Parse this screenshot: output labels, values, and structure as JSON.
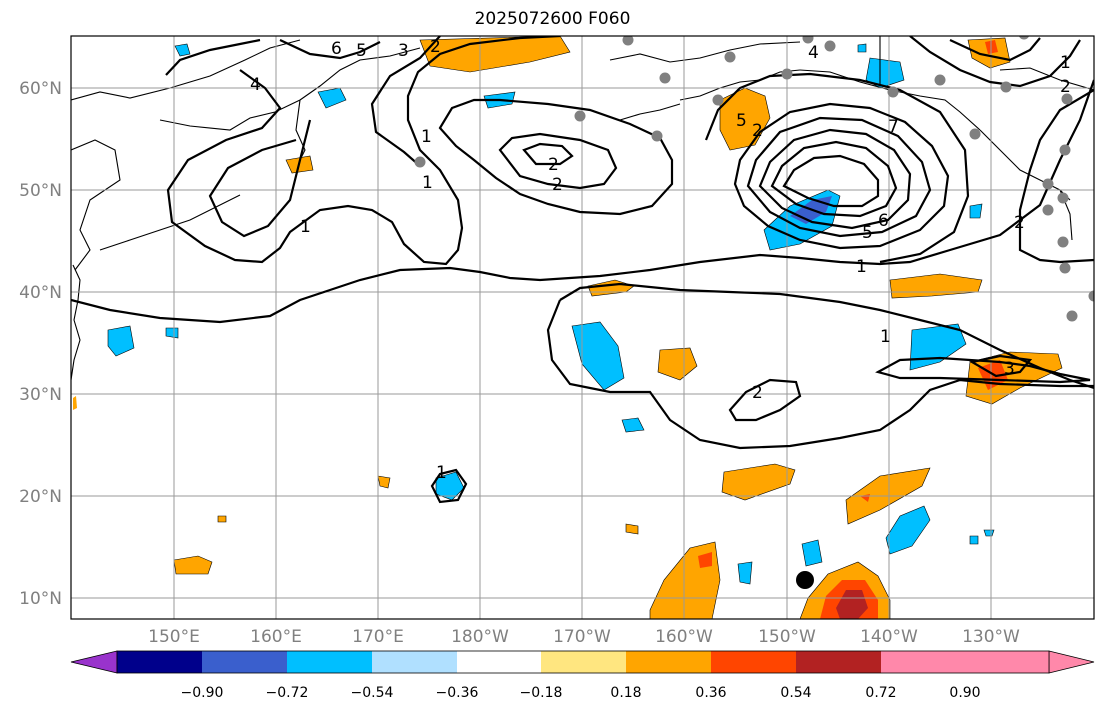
{
  "title": "2025072600 F060",
  "lat_labels": [
    "60°N",
    "50°N",
    "40°N",
    "30°N",
    "20°N",
    "10°N"
  ],
  "lon_labels": [
    "150°E",
    "160°E",
    "170°E",
    "180°W",
    "170°W",
    "160°W",
    "150°W",
    "140°W",
    "130°W"
  ],
  "colorbar": {
    "ticks": [
      "−0.90",
      "−0.72",
      "−0.54",
      "−0.36",
      "−0.18",
      "0.18",
      "0.36",
      "0.54",
      "0.72",
      "0.90"
    ],
    "colors": [
      "#9933cc",
      "#00008b",
      "#3a5fcd",
      "#00bfff",
      "#b0e0ff",
      "#ffffff",
      "#ffe680",
      "#ffa500",
      "#ff4500",
      "#b22222",
      "#ff88aa"
    ]
  },
  "contour_labels": [
    "6",
    "5",
    "4",
    "3",
    "2",
    "1",
    "1",
    "2",
    "2",
    "7",
    "5",
    "6",
    "1",
    "1",
    "2",
    "3",
    "2",
    "1",
    "1",
    "5",
    "2",
    "4",
    "1",
    "2"
  ],
  "colors": {
    "land_dot": "#808080",
    "marker": "#000000"
  }
}
